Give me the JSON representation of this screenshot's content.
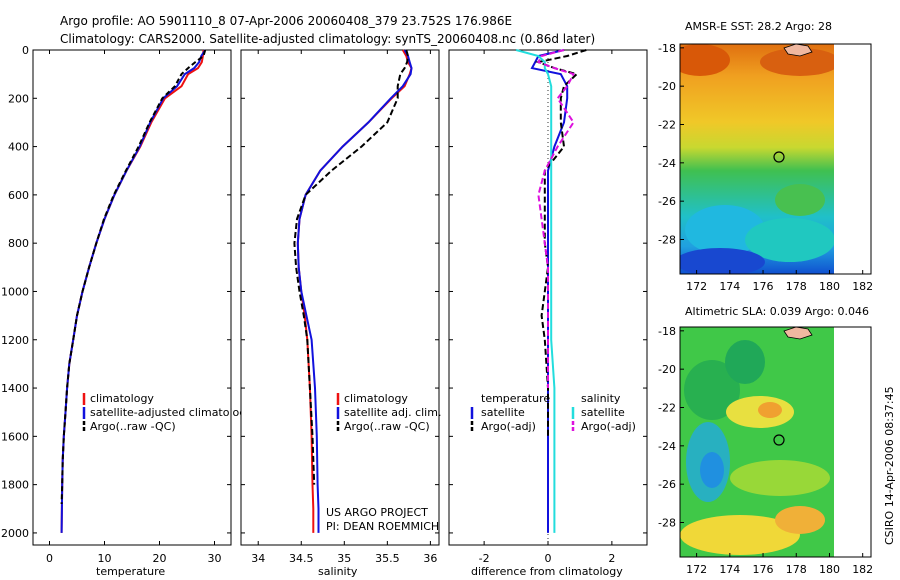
{
  "header": {
    "title_line1": "Argo profile: AO 5901110_8 07-Apr-2006 20060408_379 23.752S 176.986E",
    "title_line2": "Climatology: CARS2000. Satellite-adjusted climatology: synTS_20060408.nc (0.86d later)"
  },
  "credits": {
    "line1": "US ARGO PROJECT",
    "line2": "PI: DEAN ROEMMICH"
  },
  "side_label": "CSIRO 14-Apr-2006 08:37:45",
  "colors": {
    "climatology": "#ee1111",
    "satellite": "#1111dd",
    "argo": "#000000",
    "sat_salinity": "#22dddd",
    "argo_salinity": "#dd11dd"
  },
  "chart_data": [
    {
      "id": "temperature",
      "type": "line",
      "xlabel": "temperature",
      "ylabel": "",
      "xlim": [
        -3,
        33
      ],
      "ylim": [
        2050,
        0
      ],
      "xticks": [
        0,
        10,
        20,
        30
      ],
      "yticks": [
        0,
        200,
        400,
        600,
        800,
        1000,
        1200,
        1400,
        1600,
        1800,
        2000
      ],
      "legend": [
        "climatology",
        "satellite-adjusted climatology",
        "Argo(..raw -QC)"
      ],
      "series": [
        {
          "name": "climatology",
          "color": "#ee1111",
          "dash": "",
          "x": [
            28.0,
            27.9,
            27.7,
            27.0,
            25.2,
            24.0,
            21.0,
            18.5,
            16.5,
            14.0,
            11.8,
            10.0,
            8.5,
            7.2,
            6.0,
            5.0,
            4.3,
            3.6,
            3.2,
            2.9,
            2.6,
            2.4,
            2.3,
            2.2
          ],
          "y": [
            0,
            25,
            50,
            75,
            100,
            150,
            200,
            300,
            400,
            500,
            600,
            700,
            800,
            900,
            1000,
            1100,
            1200,
            1300,
            1400,
            1500,
            1600,
            1700,
            1800,
            2000
          ]
        },
        {
          "name": "satellite-adjusted climatology",
          "color": "#1111dd",
          "dash": "",
          "x": [
            28.3,
            27.6,
            27.2,
            26.3,
            24.6,
            23.2,
            20.7,
            18.3,
            16.4,
            14.0,
            11.8,
            10.0,
            8.5,
            7.2,
            6.0,
            5.0,
            4.3,
            3.6,
            3.2,
            2.9,
            2.6,
            2.4,
            2.3,
            2.2
          ],
          "y": [
            0,
            25,
            50,
            75,
            100,
            150,
            200,
            300,
            400,
            500,
            600,
            700,
            800,
            900,
            1000,
            1100,
            1200,
            1300,
            1400,
            1500,
            1600,
            1700,
            1800,
            2000
          ]
        },
        {
          "name": "Argo(..raw -QC)",
          "color": "#000000",
          "dash": "5,3",
          "x": [
            28.3,
            28.0,
            26.5,
            25.2,
            24.0,
            22.8,
            20.5,
            18.2,
            16.2,
            13.9,
            11.7,
            9.9,
            8.5,
            7.2,
            6.0,
            5.0,
            4.3,
            3.6,
            3.2,
            2.9,
            2.6,
            2.4,
            2.3,
            2.2
          ],
          "y": [
            0,
            25,
            50,
            75,
            100,
            150,
            200,
            300,
            400,
            500,
            600,
            700,
            800,
            900,
            1000,
            1100,
            1200,
            1300,
            1400,
            1500,
            1600,
            1700,
            1800,
            1880
          ]
        }
      ]
    },
    {
      "id": "salinity",
      "type": "line",
      "xlabel": "salinity",
      "ylabel": "",
      "xlim": [
        33.8,
        36.1
      ],
      "ylim": [
        2050,
        0
      ],
      "xticks": [
        34,
        34.5,
        35,
        35.5,
        36
      ],
      "yticks": [
        0,
        200,
        400,
        600,
        800,
        1000,
        1200,
        1400,
        1600,
        1800,
        2000
      ],
      "legend": [
        "climatology",
        "satellite adj. clim.",
        "Argo(..raw -QC)"
      ],
      "series": [
        {
          "name": "climatology",
          "color": "#ee1111",
          "dash": "",
          "x": [
            35.68,
            35.72,
            35.74,
            35.78,
            35.76,
            35.7,
            35.55,
            35.28,
            34.98,
            34.72,
            34.55,
            34.48,
            34.46,
            34.47,
            34.5,
            34.54,
            34.57,
            34.6,
            34.62,
            34.63,
            34.64,
            34.64
          ],
          "y": [
            0,
            25,
            50,
            75,
            100,
            150,
            200,
            300,
            400,
            500,
            600,
            700,
            800,
            900,
            1000,
            1100,
            1200,
            1400,
            1600,
            1800,
            1900,
            2000
          ]
        },
        {
          "name": "satellite adj. clim.",
          "color": "#1111dd",
          "dash": "",
          "x": [
            35.7,
            35.74,
            35.76,
            35.78,
            35.77,
            35.68,
            35.54,
            35.28,
            34.98,
            34.72,
            34.55,
            34.48,
            34.46,
            34.47,
            34.5,
            34.56,
            34.62,
            34.66,
            34.68,
            34.69,
            34.7,
            34.7
          ],
          "y": [
            0,
            25,
            50,
            75,
            100,
            150,
            200,
            300,
            400,
            500,
            600,
            700,
            800,
            900,
            1000,
            1100,
            1200,
            1400,
            1600,
            1800,
            1900,
            2000
          ]
        },
        {
          "name": "Argo(..raw -QC)",
          "color": "#000000",
          "dash": "6,3",
          "x": [
            35.72,
            35.74,
            35.73,
            35.7,
            35.65,
            35.62,
            35.62,
            35.5,
            35.2,
            34.85,
            34.55,
            34.45,
            34.42,
            34.44,
            34.48,
            34.53,
            34.57,
            34.6,
            34.63,
            34.65
          ],
          "y": [
            0,
            25,
            50,
            75,
            100,
            150,
            200,
            300,
            400,
            500,
            600,
            700,
            800,
            900,
            1000,
            1100,
            1200,
            1400,
            1600,
            1800
          ]
        }
      ]
    },
    {
      "id": "difference",
      "type": "line",
      "xlabel": "difference from climatology",
      "ylabel": "",
      "xlim": [
        -3.1,
        3.1
      ],
      "ylim": [
        2050,
        0
      ],
      "xticks": [
        -2,
        0,
        2
      ],
      "yticks": [
        0,
        200,
        400,
        600,
        800,
        1000,
        1200,
        1400,
        1600,
        1800,
        2000
      ],
      "legend": [
        "temperature",
        "satellite",
        "Argo(-adj)",
        "salinity",
        "satellite",
        "Argo(-adj)"
      ],
      "series": [
        {
          "name": "temperature satellite",
          "color": "#1111dd",
          "dash": "",
          "x": [
            0.5,
            -0.3,
            -0.4,
            -0.5,
            0.4,
            0.6,
            0.6,
            0.5,
            0.2,
            0,
            0,
            0,
            0,
            0,
            0,
            0,
            0,
            0,
            0,
            0,
            0
          ],
          "y": [
            0,
            25,
            50,
            75,
            100,
            150,
            200,
            300,
            400,
            500,
            600,
            700,
            800,
            900,
            1000,
            1100,
            1200,
            1400,
            1600,
            1800,
            2000
          ]
        },
        {
          "name": "temperature Argo(-adj)",
          "color": "#000000",
          "dash": "6,3",
          "x": [
            1.2,
            0.6,
            -0.3,
            0.2,
            0.9,
            0.5,
            0.4,
            0.4,
            0.5,
            -0.1,
            -0.1,
            -0.1,
            -0.1,
            0,
            -0.1,
            -0.2,
            -0.1,
            0,
            0
          ],
          "y": [
            0,
            25,
            50,
            75,
            100,
            150,
            200,
            300,
            400,
            500,
            600,
            700,
            800,
            900,
            1000,
            1100,
            1200,
            1400,
            1600
          ]
        },
        {
          "name": "salinity satellite",
          "color": "#22dddd",
          "dash": "",
          "x": [
            -1.0,
            -0.3,
            -0.1,
            -0.1,
            0,
            0.1,
            0.1,
            0.1,
            0.1,
            0.1,
            0.1,
            0.1,
            0.1,
            0.1,
            0.1,
            0.1,
            0.1,
            0.2,
            0.2,
            0.2,
            0.2
          ],
          "y": [
            0,
            25,
            50,
            75,
            100,
            150,
            200,
            300,
            400,
            500,
            600,
            700,
            800,
            900,
            1000,
            1100,
            1200,
            1400,
            1600,
            1800,
            2000
          ]
        },
        {
          "name": "salinity Argo(-adj)",
          "color": "#dd11dd",
          "dash": "6,3",
          "x": [
            0.5,
            -0.2,
            -0.3,
            0.2,
            0.8,
            0.6,
            0.3,
            0.8,
            0.3,
            -0.1,
            -0.3,
            -0.2,
            -0.1,
            0,
            0,
            0,
            0,
            0
          ],
          "y": [
            0,
            25,
            50,
            75,
            100,
            150,
            200,
            300,
            400,
            500,
            600,
            700,
            800,
            900,
            1000,
            1100,
            1200,
            1400
          ]
        }
      ]
    },
    {
      "id": "sst_map",
      "type": "heatmap",
      "title": "AMSR-E SST: 28.2 Argo: 28",
      "xlim": [
        171,
        182.5
      ],
      "ylim": [
        -29.8,
        -17.8
      ],
      "xticks": [
        172,
        174,
        176,
        178,
        180,
        182
      ],
      "yticks": [
        -18,
        -20,
        -22,
        -24,
        -26,
        -28
      ],
      "argo_position": {
        "lon": 176.986,
        "lat": -23.752
      }
    },
    {
      "id": "sla_map",
      "type": "heatmap",
      "title": "Altimetric SLA: 0.039 Argo: 0.046",
      "xlim": [
        171,
        182.5
      ],
      "ylim": [
        -29.8,
        -17.8
      ],
      "xticks": [
        172,
        174,
        176,
        178,
        180,
        182
      ],
      "yticks": [
        -18,
        -20,
        -22,
        -24,
        -26,
        -28
      ],
      "argo_position": {
        "lon": 176.986,
        "lat": -23.752
      }
    }
  ]
}
